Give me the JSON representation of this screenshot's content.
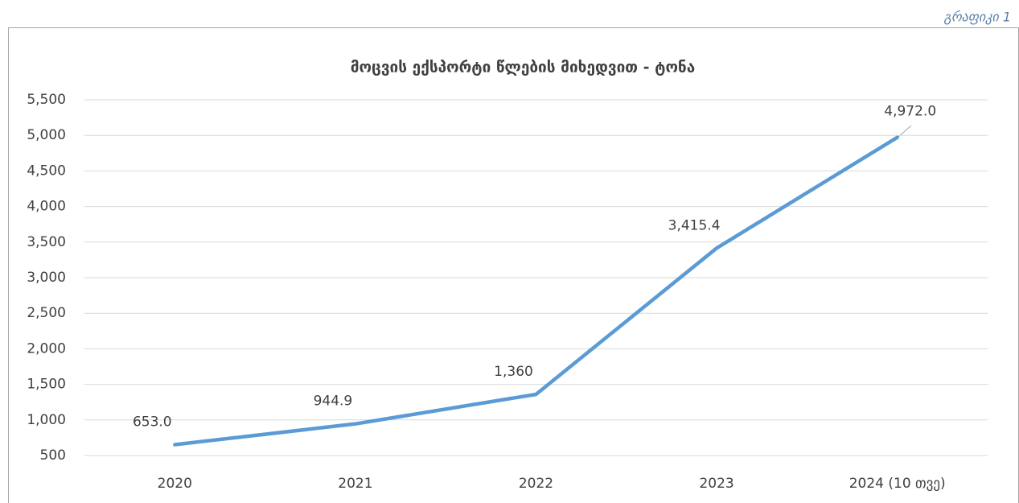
{
  "caption": "გრაფიკი 1",
  "chart_data": {
    "type": "line",
    "title": "მოცვის ექსპორტი წლების მიხედვით - ტონა",
    "categories": [
      "2020",
      "2021",
      "2022",
      "2023",
      "2024 (10 თვე)"
    ],
    "series": [
      {
        "name": "მოცვის ექსპორტი",
        "color": "#5b9bd5",
        "values": [
          653.0,
          944.9,
          1360,
          3415.4,
          4972.0
        ],
        "value_labels": [
          "653.0",
          "944.9",
          "1,360",
          "3,415.4",
          "4,972.0"
        ]
      }
    ],
    "ylim": [
      500,
      5500
    ],
    "yticks": [
      500,
      {
        "value": 1000,
        "label": "1,000"
      },
      {
        "value": 1500,
        "label": "1,500"
      },
      {
        "value": 2000,
        "label": "2,000"
      },
      {
        "value": 2500,
        "label": "2,500"
      },
      {
        "value": 3000,
        "label": "3,000"
      },
      {
        "value": 3500,
        "label": "3,500"
      },
      {
        "value": 4000,
        "label": "4,000"
      },
      {
        "value": 4500,
        "label": "4,500"
      },
      {
        "value": 5000,
        "label": "5,000"
      },
      {
        "value": 5500,
        "label": "5,500"
      }
    ],
    "grid": true
  }
}
